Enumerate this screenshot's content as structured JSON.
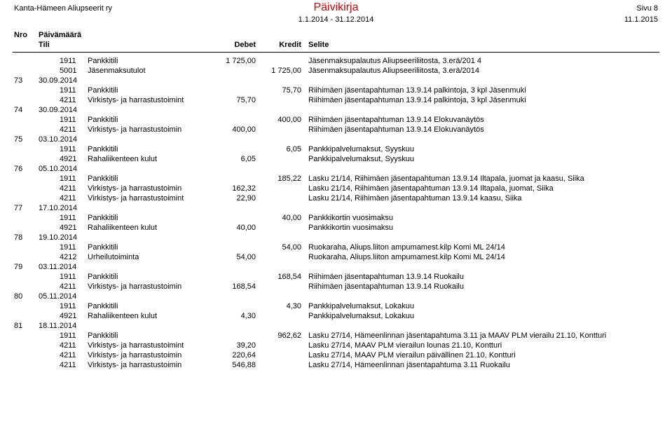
{
  "header": {
    "org": "Kanta-Hämeen Aliupseerit ry",
    "title": "Päivikirja",
    "page_label": "Sivu 8",
    "date_range": "1.1.2014 - 31.12.2014",
    "report_date": "11.1.2015"
  },
  "columns": {
    "nro": "Nro",
    "paiva": "Päivämäärä",
    "tili": "Tili",
    "debet": "Debet",
    "kredit": "Kredit",
    "selite": "Selite"
  },
  "entries": [
    {
      "nro": "",
      "date": "",
      "lines": [
        {
          "acct": "1911",
          "name": "Pankkitili",
          "col": 1,
          "amt": "1 725,00",
          "desc": "Jäsenmaksupalautus Aliupseeriliitosta, 3.erä/201 4"
        },
        {
          "acct": "5001",
          "name": "Jäsenmaksutulot",
          "col": 2,
          "amt": "1 725,00",
          "desc": "Jäsenmaksupalautus Aliupseeriliitosta, 3.erä/2014"
        }
      ]
    },
    {
      "nro": "73",
      "date": "30.09.2014",
      "lines": [
        {
          "acct": "1911",
          "name": "Pankkitili",
          "col": 2,
          "amt": "75,70",
          "desc": "Riihimäen jäsentapahtuman 13.9.14 palkintoja, 3 kpl Jäsenmuki"
        },
        {
          "acct": "4211",
          "name": "Virkistys- ja harrastustoimint",
          "col": 1,
          "amt": "75,70",
          "desc": "Riihimäen jäsentapahtuman 13.9.14 palkintoja, 3 kpl Jäsenmuki"
        }
      ]
    },
    {
      "nro": "74",
      "date": "30.09.2014",
      "lines": [
        {
          "acct": "1911",
          "name": "Pankkitili",
          "col": 2,
          "amt": "400,00",
          "desc": "Riihimäen jäsentapahtuman 13.9.14 Elokuvanäytös"
        },
        {
          "acct": "4211",
          "name": "Virkistys- ja harrastustoimin",
          "col": 1,
          "amt": "400,00",
          "desc": "Riihimäen jäsentapahtuman 13.9.14 Elokuvanäytös"
        }
      ]
    },
    {
      "nro": "75",
      "date": "03.10.2014",
      "lines": [
        {
          "acct": "1911",
          "name": "Pankkitili",
          "col": 2,
          "amt": "6,05",
          "desc": "Pankkipalvelumaksut, Syyskuu"
        },
        {
          "acct": "4921",
          "name": "Rahaliikenteen kulut",
          "col": 1,
          "amt": "6,05",
          "desc": "Pankkipalvelumaksut, Syyskuu"
        }
      ]
    },
    {
      "nro": "76",
      "date": "05.10.2014",
      "lines": [
        {
          "acct": "1911",
          "name": "Pankkitili",
          "col": 2,
          "amt": "185,22",
          "desc": "Lasku 21/14, Riihimäen jäsentapahtuman 13.9.14 Iltapala, juomat ja kaasu, Siika"
        },
        {
          "acct": "4211",
          "name": "Virkistys- ja harrastustoimin",
          "col": 1,
          "amt": "162,32",
          "desc": "Lasku 21/14, Riihimäen jäsentapahtuman 13.9.14 Iltapala, juomat, Siika"
        },
        {
          "acct": "4211",
          "name": "Virkistys- ja harrastustoimint",
          "col": 1,
          "amt": "22,90",
          "desc": "Lasku 21/14, Riihimäen jäsentapahtuman 13.9.14 kaasu, Siika"
        }
      ]
    },
    {
      "nro": "77",
      "date": "17.10.2014",
      "lines": [
        {
          "acct": "1911",
          "name": "Pankkitili",
          "col": 2,
          "amt": "40,00",
          "desc": "Pankkikortin vuosimaksu"
        },
        {
          "acct": "4921",
          "name": "Rahaliikenteen kulut",
          "col": 1,
          "amt": "40,00",
          "desc": "Pankkikortin vuosimaksu"
        }
      ]
    },
    {
      "nro": "78",
      "date": "19.10.2014",
      "lines": [
        {
          "acct": "1911",
          "name": "Pankkitili",
          "col": 2,
          "amt": "54,00",
          "desc": "Ruokaraha, Aliups.liiton ampumamest.kilp Komi ML 24/14"
        },
        {
          "acct": "4212",
          "name": "Urheilutoiminta",
          "col": 1,
          "amt": "54,00",
          "desc": "Ruokaraha, Aliups.liiton ampumamest.kilp Komi ML 24/14"
        }
      ]
    },
    {
      "nro": "79",
      "date": "03.11.2014",
      "lines": [
        {
          "acct": "1911",
          "name": "Pankkitili",
          "col": 2,
          "amt": "168,54",
          "desc": "Riihimäen jäsentapahtuman 13.9.14 Ruokailu"
        },
        {
          "acct": "4211",
          "name": "Virkistys- ja harrastustoimin",
          "col": 1,
          "amt": "168,54",
          "desc": "Riihimäen jäsentapahtuman 13.9.14 Ruokailu"
        }
      ]
    },
    {
      "nro": "80",
      "date": "05.11.2014",
      "lines": [
        {
          "acct": "1911",
          "name": "Pankkitili",
          "col": 2,
          "amt": "4,30",
          "desc": "Pankkipalvelumaksut, Lokakuu"
        },
        {
          "acct": "4921",
          "name": "Rahaliikenteen kulut",
          "col": 1,
          "amt": "4,30",
          "desc": "Pankkipalvelumaksut, Lokakuu"
        }
      ]
    },
    {
      "nro": "81",
      "date": "18.11.2014",
      "lines": [
        {
          "acct": "1911",
          "name": "Pankkitili",
          "col": 2,
          "amt": "962,62",
          "desc": "Lasku 27/14, Hämeenlinnan jäsentapahtuma 3.11 ja MAAV PLM vierailu 21.10, Kontturi"
        },
        {
          "acct": "4211",
          "name": "Virkistys- ja harrastustoimint",
          "col": 1,
          "amt": "39,20",
          "desc": "Lasku 27/14, MAAV PLM vierailun lounas 21.10, Kontturi"
        },
        {
          "acct": "4211",
          "name": "Virkistys- ja harrastustoimin",
          "col": 1,
          "amt": "220,64",
          "desc": "Lasku 27/14, MAAV PLM vierailun päivällinen 21.10, Kontturi"
        },
        {
          "acct": "4211",
          "name": "Virkistys- ja harrastustoimin",
          "col": 1,
          "amt": "546,88",
          "desc": "Lasku 27/14, Hämeenlinnan jäsentapahtuma 3.11 Ruokailu"
        }
      ]
    }
  ]
}
